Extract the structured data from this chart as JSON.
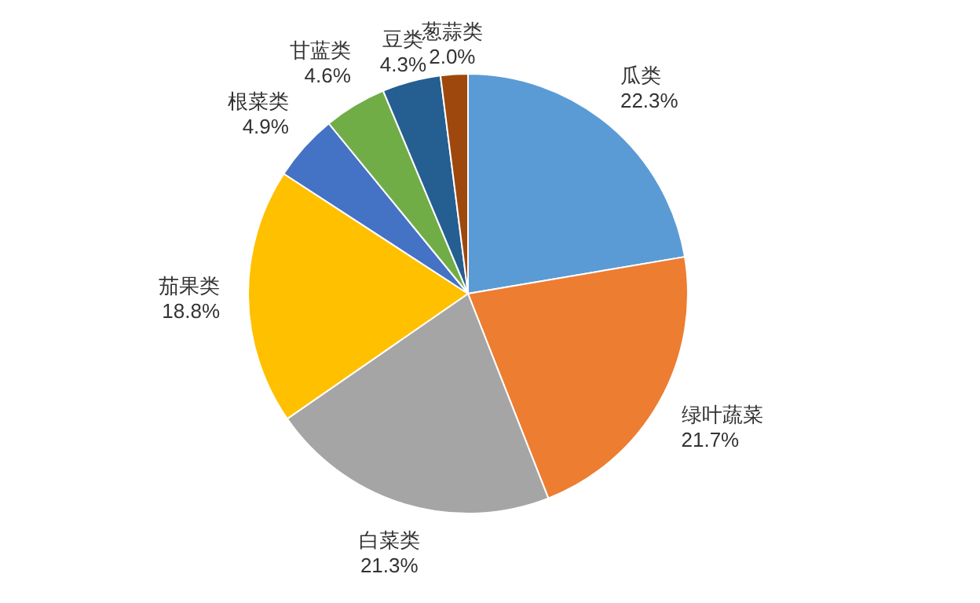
{
  "chart_data": {
    "type": "pie",
    "categories": [
      "瓜类",
      "绿叶蔬菜",
      "白菜类",
      "茄果类",
      "根菜类",
      "甘蓝类",
      "豆类",
      "葱蒜类"
    ],
    "values": [
      22.3,
      21.7,
      21.3,
      18.8,
      4.9,
      4.6,
      4.3,
      2.0
    ],
    "value_labels": [
      "22.3%",
      "21.7%",
      "21.3%",
      "18.8%",
      "4.9%",
      "4.6%",
      "4.3%",
      "2.0%"
    ],
    "colors": [
      "#5b9bd5",
      "#ed7d31",
      "#a5a5a5",
      "#ffc000",
      "#4472c4",
      "#70ad47",
      "#255e91",
      "#9e480e"
    ],
    "legend": false
  }
}
